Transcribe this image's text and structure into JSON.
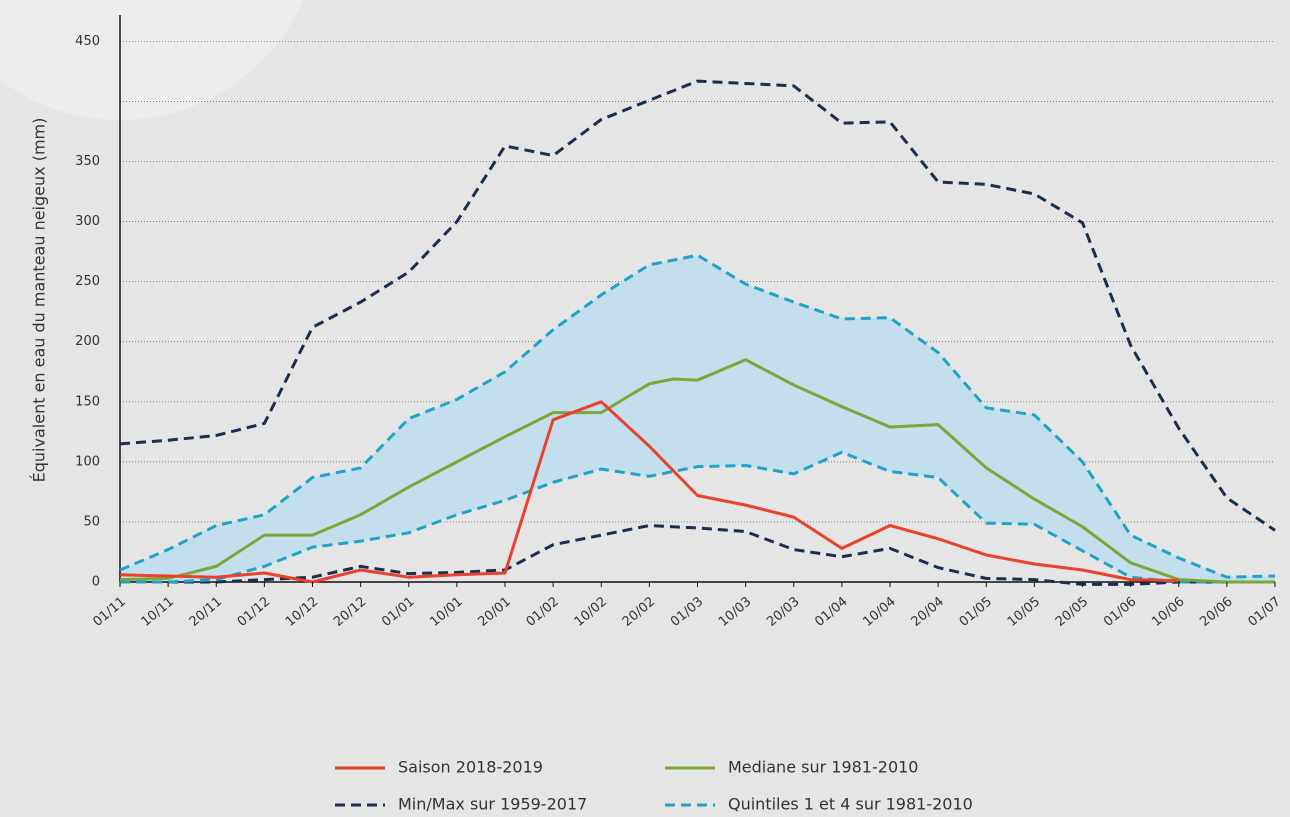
{
  "chart_data": {
    "type": "line",
    "y_label": "Équivalent en eau du manteau neigeux (mm)",
    "xlim": [
      0,
      24
    ],
    "xticks": [
      {
        "value": 0,
        "label": "01/11"
      },
      {
        "value": 1,
        "label": "10/11"
      },
      {
        "value": 2,
        "label": "20/11"
      },
      {
        "value": 3,
        "label": "01/12"
      },
      {
        "value": 4,
        "label": "10/12"
      },
      {
        "value": 5,
        "label": "20/12"
      },
      {
        "value": 6,
        "label": "01/01"
      },
      {
        "value": 7,
        "label": "10/01"
      },
      {
        "value": 8,
        "label": "20/01"
      },
      {
        "value": 9,
        "label": "01/02"
      },
      {
        "value": 10,
        "label": "10/02"
      },
      {
        "value": 11,
        "label": "20/02"
      },
      {
        "value": 12,
        "label": "01/03"
      },
      {
        "value": 13,
        "label": "10/03"
      },
      {
        "value": 14,
        "label": "20/03"
      },
      {
        "value": 15,
        "label": "01/04"
      },
      {
        "value": 16,
        "label": "10/04"
      },
      {
        "value": 17,
        "label": "20/04"
      },
      {
        "value": 18,
        "label": "01/05"
      },
      {
        "value": 19,
        "label": "10/05"
      },
      {
        "value": 20,
        "label": "20/05"
      },
      {
        "value": 21,
        "label": "01/06"
      },
      {
        "value": 22,
        "label": "10/06"
      },
      {
        "value": 23,
        "label": "20/06"
      },
      {
        "value": 24,
        "label": "01/07"
      }
    ],
    "ylim": [
      0,
      472
    ],
    "yticks": [
      0,
      50,
      100,
      150,
      200,
      250,
      300,
      350,
      450
    ],
    "ygrid": [
      0,
      50,
      100,
      150,
      200,
      250,
      300,
      350,
      400,
      450
    ],
    "series": [
      {
        "name": "Saison 2018-2019",
        "color": "#e8412c",
        "style": "solid",
        "x": [
          0,
          1,
          2,
          3,
          4,
          5,
          6,
          7,
          8,
          9,
          10,
          11,
          12,
          13,
          14,
          15,
          16,
          17,
          18,
          19,
          20,
          21,
          22
        ],
        "values": [
          6,
          5,
          4,
          7.5,
          0,
          10,
          4,
          6,
          7.5,
          135,
          150,
          113,
          72,
          64,
          54,
          28,
          47,
          36,
          22.5,
          15,
          10,
          2,
          1
        ]
      },
      {
        "name": "Mediane sur 1981-2010",
        "color": "#7aa63a",
        "style": "solid",
        "x": [
          0,
          1,
          2,
          3,
          4,
          5,
          6,
          7,
          8,
          9,
          10,
          11,
          11.5,
          12,
          13,
          14,
          15,
          16,
          17,
          18,
          19,
          20,
          21,
          22,
          23,
          24
        ],
        "values": [
          2,
          3,
          13,
          39,
          39,
          56,
          79,
          100,
          121,
          141,
          141,
          165,
          169,
          168,
          185,
          164,
          146,
          129,
          131,
          95,
          69,
          46,
          16,
          2,
          0,
          0
        ]
      },
      {
        "name": "Min/Max sur 1959-2017",
        "color": "#1a2e4f",
        "style": "dashed",
        "x": [
          0,
          1,
          2,
          3,
          4,
          5,
          6,
          7,
          8,
          9,
          10,
          11,
          12,
          13,
          14,
          15,
          16,
          17,
          18,
          19,
          20,
          21,
          22,
          23,
          24
        ],
        "min": [
          0,
          0,
          0,
          2,
          4,
          13,
          7,
          8,
          10,
          31,
          39,
          47,
          45,
          42,
          27,
          21,
          28,
          12,
          3,
          2,
          -2,
          -2,
          0,
          0,
          0
        ],
        "max": [
          115,
          118,
          122,
          132,
          212,
          233,
          258,
          300,
          363,
          355,
          385,
          401,
          417,
          415,
          413,
          382,
          383,
          333,
          331,
          323,
          299,
          197,
          128,
          70,
          43
        ]
      },
      {
        "name": "Quintiles 1 et 4 sur 1981-2010",
        "color": "#1fa3c8",
        "style": "dashed",
        "fill": "#c3deec",
        "x": [
          0,
          1,
          2,
          3,
          4,
          5,
          6,
          7,
          8,
          9,
          10,
          11,
          12,
          13,
          14,
          15,
          16,
          17,
          18,
          19,
          20,
          21,
          22,
          23,
          24
        ],
        "min": [
          0,
          0,
          2,
          13,
          29,
          34,
          41,
          56,
          68,
          83,
          94,
          88,
          96,
          97,
          90,
          108,
          92,
          87,
          49,
          48,
          26,
          4,
          0,
          0,
          0
        ],
        "max": [
          10,
          27,
          47,
          56,
          87,
          95,
          136,
          152,
          175,
          210,
          239,
          264,
          272,
          248,
          233,
          219,
          220,
          191,
          145,
          139,
          100,
          39,
          20,
          4,
          5
        ]
      }
    ]
  }
}
